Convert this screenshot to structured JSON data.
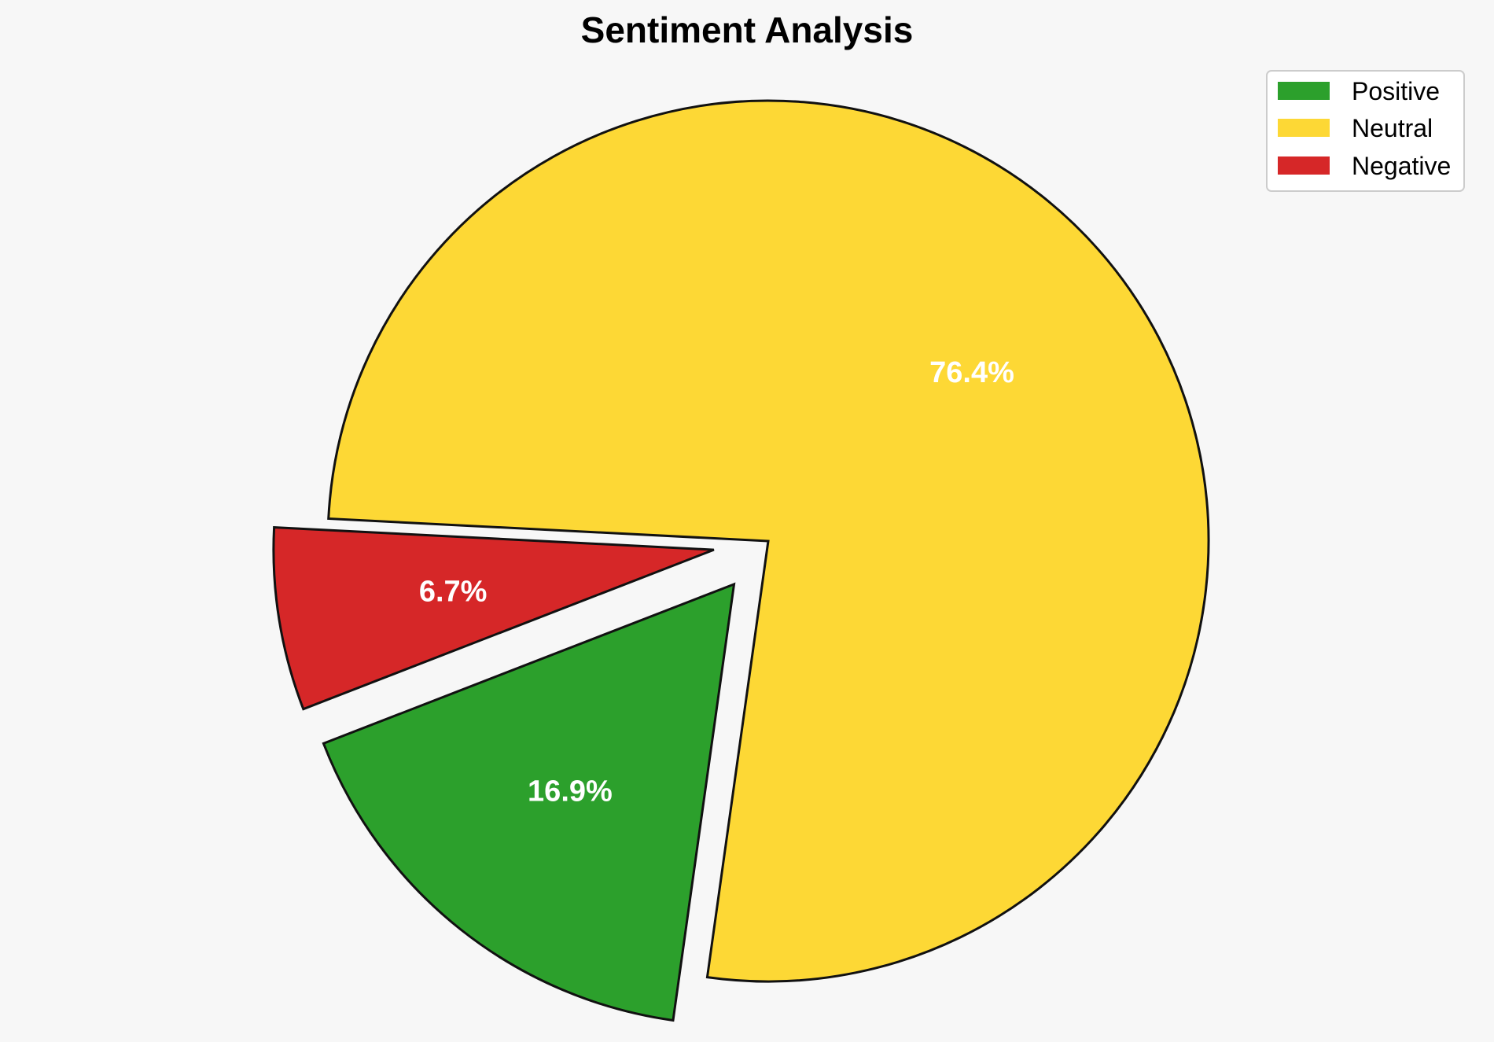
{
  "chart_data": {
    "type": "pie",
    "title": "Sentiment Analysis",
    "categories": [
      "Positive",
      "Neutral",
      "Negative"
    ],
    "values": [
      16.9,
      76.4,
      6.7
    ],
    "labels": [
      "16.9%",
      "76.4%",
      "6.7%"
    ],
    "colors": [
      "#2ca02c",
      "#fdd835",
      "#d62728"
    ],
    "exploded": [
      true,
      false,
      true
    ],
    "legend": {
      "placement": "top-right",
      "entries": [
        "Positive",
        "Neutral",
        "Negative"
      ]
    }
  }
}
